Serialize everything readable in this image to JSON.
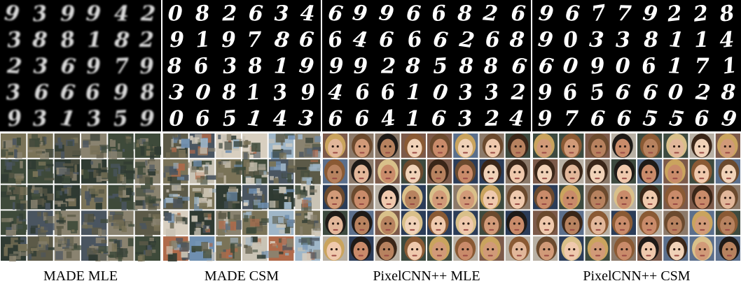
{
  "captions": {
    "made_mle": "MADE MLE",
    "made_csm": "MADE CSM",
    "pixelcnn_mle": "PixelCNN++ MLE",
    "pixelcnn_csm": "PixelCNN++ CSM"
  },
  "digit_grids": {
    "made_mle": [
      "9",
      "3",
      "9",
      "9",
      "4",
      "2",
      "3",
      "8",
      "8",
      "1",
      "8",
      "2",
      "2",
      "3",
      "6",
      "9",
      "7",
      "9",
      "3",
      "6",
      "6",
      "6",
      "9",
      "8",
      "9",
      "3",
      "1",
      "3",
      "5",
      "9"
    ],
    "made_csm": [
      "0",
      "8",
      "2",
      "6",
      "3",
      "4",
      "9",
      "1",
      "9",
      "7",
      "8",
      "6",
      "8",
      "6",
      "3",
      "8",
      "1",
      "9",
      "3",
      "0",
      "8",
      "1",
      "3",
      "9",
      "0",
      "6",
      "5",
      "1",
      "4",
      "3"
    ],
    "pixelcnn_mle": [
      "6",
      "9",
      "9",
      "6",
      "6",
      "8",
      "2",
      "6",
      "6",
      "4",
      "6",
      "6",
      "6",
      "2",
      "6",
      "8",
      "9",
      "9",
      "2",
      "8",
      "5",
      "8",
      "8",
      "6",
      "4",
      "6",
      "6",
      "1",
      "0",
      "3",
      "3",
      "2",
      "6",
      "6",
      "4",
      "1",
      "6",
      "3",
      "2",
      "4"
    ],
    "pixelcnn_csm": [
      "9",
      "6",
      "7",
      "7",
      "9",
      "2",
      "2",
      "8",
      "9",
      "0",
      "3",
      "3",
      "8",
      "1",
      "1",
      "4",
      "6",
      "0",
      "9",
      "0",
      "6",
      "1",
      "7",
      "1",
      "9",
      "6",
      "5",
      "6",
      "6",
      "0",
      "2",
      "8",
      "9",
      "7",
      "6",
      "6",
      "5",
      "5",
      "6",
      "9"
    ]
  },
  "image_styles": {
    "digit_background": "#000000",
    "digit_ink": "#ffffff",
    "cifar_tones": [
      "#3e4a3a",
      "#5c5a48",
      "#7a7358",
      "#4a5560",
      "#8a8370",
      "#2f3a32"
    ],
    "cifar_light_tones": [
      "#c9c3b5",
      "#9fb6c8",
      "#d8cfc0",
      "#6f8fb0",
      "#b06a4a"
    ],
    "face_skin_tones": [
      "#e2b79a",
      "#d19a78",
      "#c98b6a",
      "#efc9ad",
      "#b7825f",
      "#f0d2b8"
    ],
    "face_hair_tones": [
      "#3a2618",
      "#6b4a2e",
      "#caa45e",
      "#1e1a17",
      "#8a5a34",
      "#d9c08a"
    ],
    "face_background_tones": [
      "#5b6f8c",
      "#8c7a6a",
      "#3d4a3f",
      "#b8b0a4",
      "#7c5a4a",
      "#2b3c58"
    ]
  }
}
